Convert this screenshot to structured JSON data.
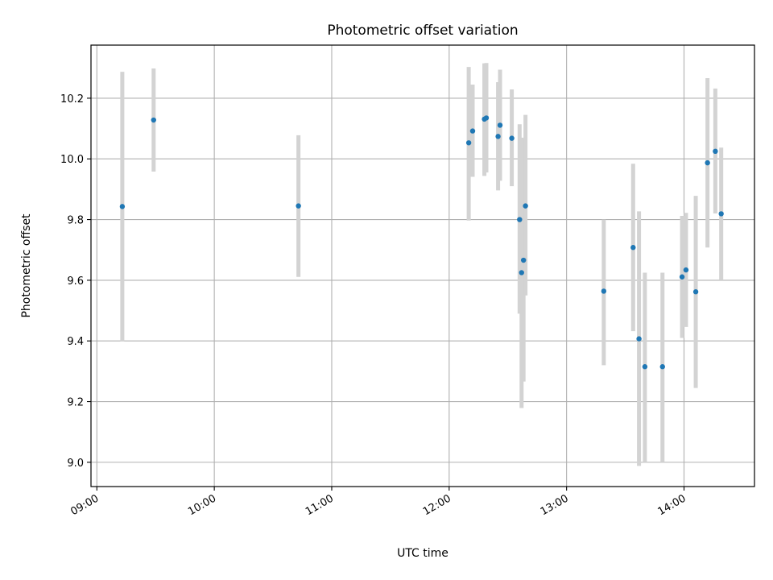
{
  "chart_data": {
    "type": "scatter",
    "title": "Photometric offset variation",
    "xlabel": "UTC time",
    "ylabel": "Photometric offset",
    "x_axis": {
      "kind": "time",
      "range": [
        "08:57",
        "14:36"
      ],
      "ticks": [
        "09:00",
        "10:00",
        "11:00",
        "12:00",
        "13:00",
        "14:00"
      ]
    },
    "y_axis": {
      "range": [
        8.92,
        10.375
      ],
      "ticks": [
        9.0,
        9.2,
        9.4,
        9.6,
        9.8,
        10.0,
        10.2
      ],
      "tick_labels": [
        "9.0",
        "9.2",
        "9.4",
        "9.6",
        "9.8",
        "10.0",
        "10.2"
      ]
    },
    "grid": true,
    "colors": {
      "points": "#1f77b4",
      "errorbars": "#d3d3d3",
      "grid": "#b0b0b0"
    },
    "series": [
      {
        "points": [
          {
            "x": "09:13",
            "y": 9.843,
            "ylow": 9.398,
            "yhigh": 10.287
          },
          {
            "x": "09:29",
            "y": 10.128,
            "ylow": 9.958,
            "yhigh": 10.298
          },
          {
            "x": "10:43",
            "y": 9.845,
            "ylow": 9.611,
            "yhigh": 10.078
          },
          {
            "x": "12:10",
            "y": 10.053,
            "ylow": 9.797,
            "yhigh": 10.303
          },
          {
            "x": "12:12",
            "y": 10.092,
            "ylow": 9.941,
            "yhigh": 10.245
          },
          {
            "x": "12:18",
            "y": 10.131,
            "ylow": 9.944,
            "yhigh": 10.315
          },
          {
            "x": "12:19",
            "y": 10.135,
            "ylow": 9.955,
            "yhigh": 10.316
          },
          {
            "x": "12:25",
            "y": 10.074,
            "ylow": 9.896,
            "yhigh": 10.253
          },
          {
            "x": "12:26",
            "y": 10.111,
            "ylow": 9.928,
            "yhigh": 10.294
          },
          {
            "x": "12:32",
            "y": 10.068,
            "ylow": 9.91,
            "yhigh": 10.229
          },
          {
            "x": "12:36",
            "y": 9.8,
            "ylow": 9.49,
            "yhigh": 10.114
          },
          {
            "x": "12:37",
            "y": 9.625,
            "ylow": 9.179,
            "yhigh": 10.07
          },
          {
            "x": "12:38",
            "y": 9.666,
            "ylow": 9.266,
            "yhigh": 10.067
          },
          {
            "x": "12:39",
            "y": 9.845,
            "ylow": 9.55,
            "yhigh": 10.145
          },
          {
            "x": "13:19",
            "y": 9.564,
            "ylow": 9.32,
            "yhigh": 9.8
          },
          {
            "x": "13:34",
            "y": 9.708,
            "ylow": 9.432,
            "yhigh": 9.984
          },
          {
            "x": "13:37",
            "y": 9.407,
            "ylow": 8.988,
            "yhigh": 9.827
          },
          {
            "x": "13:40",
            "y": 9.315,
            "ylow": 9.0,
            "yhigh": 9.625
          },
          {
            "x": "13:49",
            "y": 9.315,
            "ylow": 9.0,
            "yhigh": 9.625
          },
          {
            "x": "13:59",
            "y": 9.611,
            "ylow": 9.41,
            "yhigh": 9.812
          },
          {
            "x": "14:01",
            "y": 9.634,
            "ylow": 9.446,
            "yhigh": 9.822
          },
          {
            "x": "14:06",
            "y": 9.562,
            "ylow": 9.245,
            "yhigh": 9.878
          },
          {
            "x": "14:12",
            "y": 9.987,
            "ylow": 9.708,
            "yhigh": 10.266
          },
          {
            "x": "14:16",
            "y": 10.025,
            "ylow": 9.82,
            "yhigh": 10.232
          },
          {
            "x": "14:19",
            "y": 9.819,
            "ylow": 9.6,
            "yhigh": 10.037
          }
        ]
      }
    ]
  }
}
